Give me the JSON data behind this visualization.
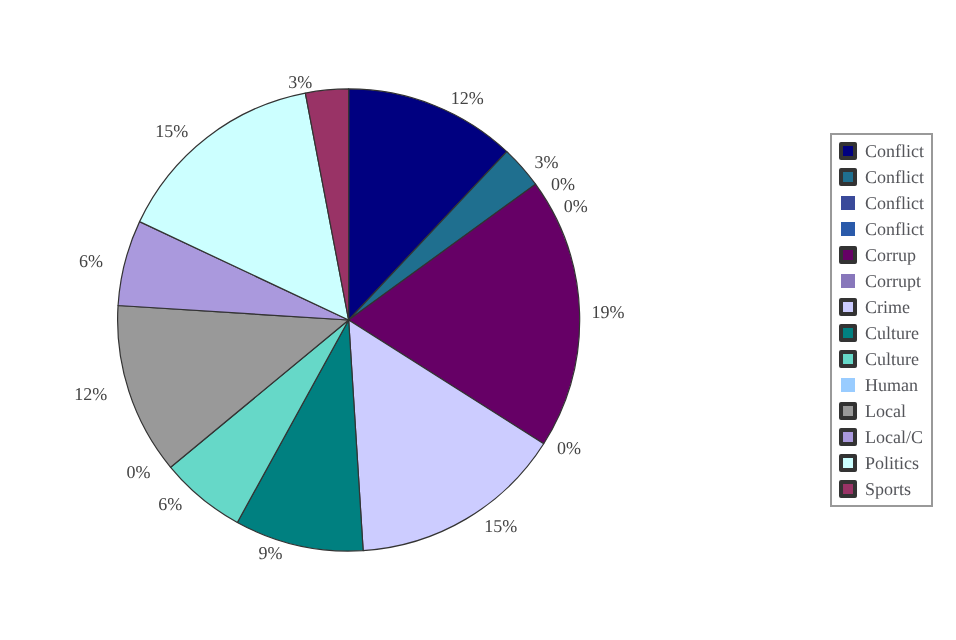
{
  "chart_data": {
    "type": "pie",
    "categories": [
      "Conflict",
      "Conflict",
      "Conflict",
      "Conflict",
      "Corrup",
      "Corrupt",
      "Crime",
      "Culture",
      "Culture",
      "Human",
      "Local",
      "Local/C",
      "Politics",
      "Sports"
    ],
    "values": [
      12,
      3,
      0,
      0,
      19,
      0,
      15,
      9,
      6,
      0,
      12,
      6,
      15,
      3
    ],
    "value_labels": [
      "12%",
      "3%",
      "0%",
      "0%",
      "19%",
      "0%",
      "15%",
      "9%",
      "6%",
      "0%",
      "12%",
      "6%",
      "15%",
      "3%"
    ],
    "colors": [
      "#000080",
      "#1f6f8f",
      "#3a4a9a",
      "#2a5aaa",
      "#660066",
      "#8877bb",
      "#ccccff",
      "#008080",
      "#66d8c8",
      "#99ccff",
      "#999999",
      "#aa99dd",
      "#ccffff",
      "#993366"
    ],
    "legend": "right"
  }
}
